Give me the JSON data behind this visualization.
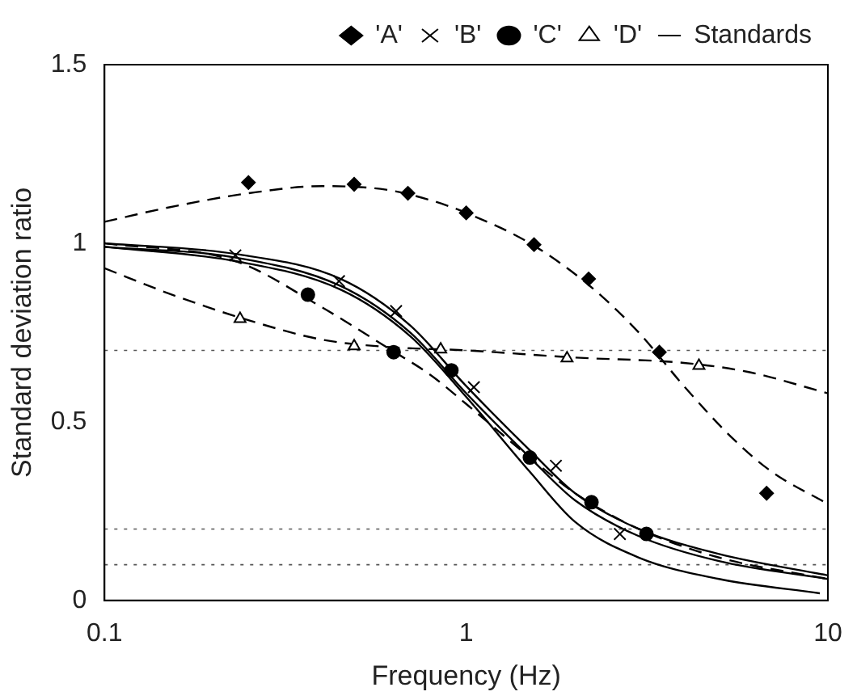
{
  "chart_data": {
    "type": "scatter",
    "xlabel": "Frequency (Hz)",
    "ylabel": "Standard deviation ratio",
    "log": "x",
    "xlim": [
      0.1,
      10
    ],
    "xticks": [
      0.1,
      1,
      10
    ],
    "ylim": [
      0,
      1.5
    ],
    "yticks": [
      0,
      0.5,
      1,
      1.5
    ],
    "grid": false,
    "legend": "top right",
    "ref_lines": [
      {
        "axis": "y",
        "value": 0.7,
        "line_style": "dotted"
      },
      {
        "axis": "y",
        "value": 0.2,
        "line_style": "dotted"
      },
      {
        "axis": "y",
        "value": 0.1,
        "line_style": "dotted"
      }
    ],
    "series": [
      {
        "name": "'A'",
        "marker": "diamond",
        "color": "#000000",
        "x": [
          0.25,
          0.49,
          0.69,
          1.0,
          1.54,
          2.18,
          3.42,
          6.77
        ],
        "values": [
          1.17,
          1.165,
          1.14,
          1.085,
          0.996,
          0.9,
          0.695,
          0.3
        ]
      },
      {
        "name": "'B'",
        "marker": "cross",
        "color": "#000000",
        "x": [
          0.23,
          0.445,
          0.64,
          1.05,
          1.77,
          2.66
        ],
        "values": [
          0.966,
          0.894,
          0.81,
          0.597,
          0.377,
          0.186
        ]
      },
      {
        "name": "'C'",
        "marker": "circle",
        "color": "#000000",
        "x": [
          0.365,
          0.63,
          0.91,
          1.5,
          2.22,
          3.15
        ],
        "values": [
          0.856,
          0.695,
          0.644,
          0.4,
          0.275,
          0.186
        ]
      },
      {
        "name": "'D'",
        "marker": "triangle",
        "color": "#000000",
        "x": [
          0.237,
          0.49,
          0.85,
          1.9,
          4.4
        ],
        "values": [
          0.788,
          0.712,
          0.703,
          0.678,
          0.657
        ]
      },
      {
        "name": "Standards",
        "type": "line",
        "marker": "none",
        "line_style": "solid",
        "color": "#000000",
        "x": [
          0.1,
          0.23,
          0.45,
          0.7,
          1,
          1.5,
          2,
          3,
          5,
          10
        ],
        "values": [
          1.0,
          0.97,
          0.9,
          0.77,
          0.6,
          0.42,
          0.3,
          0.2,
          0.13,
          0.07
        ]
      },
      {
        "type": "line",
        "marker": "none",
        "line_style": "solid",
        "color": "#000000",
        "x": [
          0.1,
          0.23,
          0.45,
          0.7,
          1,
          1.5,
          2,
          3,
          5,
          10
        ],
        "values": [
          0.99,
          0.96,
          0.88,
          0.75,
          0.58,
          0.4,
          0.28,
          0.18,
          0.11,
          0.06
        ]
      },
      {
        "type": "line",
        "marker": "none",
        "line_style": "solid",
        "color": "#000000",
        "x": [
          0.1,
          0.23,
          0.45,
          0.7,
          1,
          1.5,
          2,
          3,
          5,
          9.5
        ],
        "values": [
          0.99,
          0.95,
          0.87,
          0.74,
          0.57,
          0.36,
          0.22,
          0.12,
          0.06,
          0.02
        ]
      },
      {
        "type": "line",
        "marker": "none",
        "line_style": "dashed",
        "color": "#000000",
        "x": [
          0.1,
          0.15,
          0.25,
          0.4,
          0.6,
          0.8,
          1,
          1.5,
          2.2,
          3,
          4,
          5.5,
          7,
          10
        ],
        "values": [
          1.06,
          1.1,
          1.14,
          1.16,
          1.15,
          1.12,
          1.085,
          1.0,
          0.88,
          0.75,
          0.6,
          0.45,
          0.36,
          0.27
        ]
      },
      {
        "type": "line",
        "marker": "none",
        "line_style": "dashed",
        "color": "#000000",
        "x": [
          0.1,
          0.23,
          0.4,
          0.6,
          0.8,
          1,
          1.5,
          2,
          3,
          5,
          10
        ],
        "values": [
          1.0,
          0.95,
          0.82,
          0.71,
          0.63,
          0.55,
          0.4,
          0.3,
          0.2,
          0.12,
          0.06
        ]
      },
      {
        "type": "line",
        "marker": "none",
        "line_style": "dashed",
        "color": "#000000",
        "x": [
          0.1,
          0.15,
          0.24,
          0.4,
          0.6,
          1,
          2,
          4,
          6,
          10
        ],
        "values": [
          0.93,
          0.86,
          0.79,
          0.73,
          0.71,
          0.7,
          0.68,
          0.665,
          0.64,
          0.58
        ]
      }
    ]
  }
}
